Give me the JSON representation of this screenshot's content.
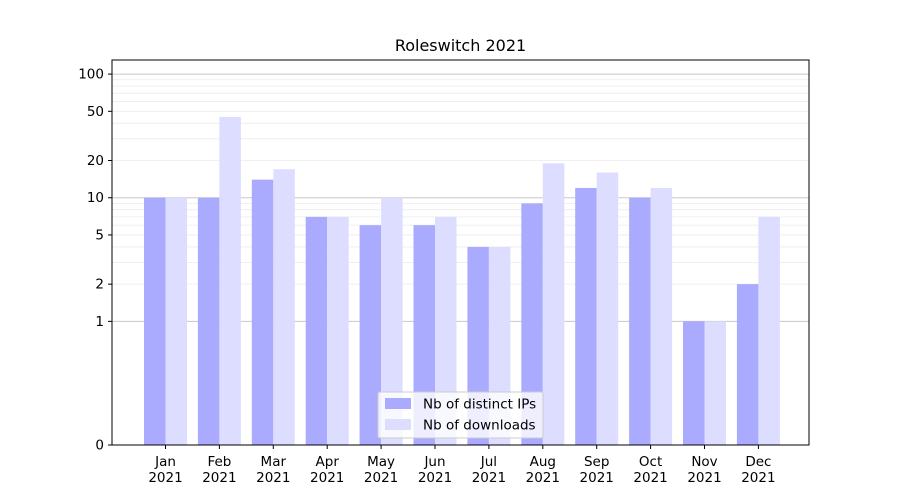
{
  "chart_data": {
    "type": "bar",
    "title": "Roleswitch 2021",
    "xlabel": "",
    "ylabel": "",
    "y_scale": "symlog",
    "ylim": [
      0,
      130
    ],
    "y_ticks": [
      0,
      1,
      2,
      5,
      10,
      20,
      50,
      100
    ],
    "categories": [
      {
        "month": "Jan",
        "year": "2021"
      },
      {
        "month": "Feb",
        "year": "2021"
      },
      {
        "month": "Mar",
        "year": "2021"
      },
      {
        "month": "Apr",
        "year": "2021"
      },
      {
        "month": "May",
        "year": "2021"
      },
      {
        "month": "Jun",
        "year": "2021"
      },
      {
        "month": "Jul",
        "year": "2021"
      },
      {
        "month": "Aug",
        "year": "2021"
      },
      {
        "month": "Sep",
        "year": "2021"
      },
      {
        "month": "Oct",
        "year": "2021"
      },
      {
        "month": "Nov",
        "year": "2021"
      },
      {
        "month": "Dec",
        "year": "2021"
      }
    ],
    "series": [
      {
        "name": "Nb of distinct IPs",
        "color": "#aaaaff",
        "values": [
          10,
          10,
          14,
          7,
          6,
          6,
          4,
          9,
          12,
          10,
          1,
          2
        ]
      },
      {
        "name": "Nb of downloads",
        "color": "#ddddff",
        "values": [
          10,
          45,
          17,
          7,
          10,
          7,
          4,
          19,
          16,
          12,
          1,
          7
        ]
      }
    ],
    "grid": "y-major-and-minor",
    "legend_position": "bottom-center"
  }
}
